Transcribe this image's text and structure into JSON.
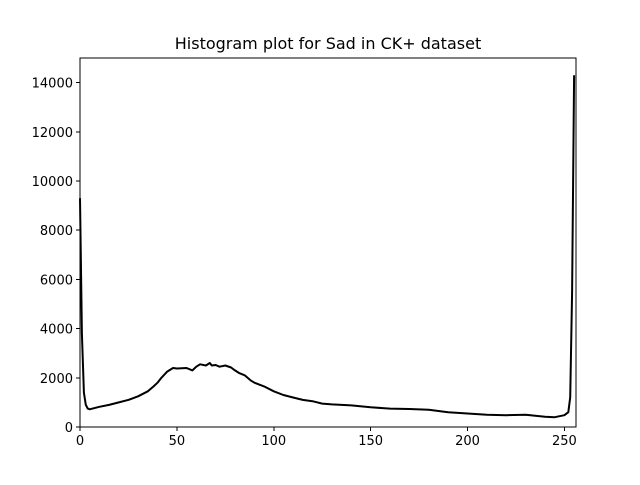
{
  "chart_data": {
    "type": "line",
    "title": "Histogram plot for Sad in CK+ dataset",
    "xlabel": "",
    "ylabel": "",
    "xlim": [
      0,
      256
    ],
    "ylim": [
      0,
      15000
    ],
    "xticks": [
      0,
      50,
      100,
      150,
      200,
      250
    ],
    "yticks": [
      0,
      2000,
      4000,
      6000,
      8000,
      10000,
      12000,
      14000
    ],
    "grid": false,
    "line_color": "#000000",
    "series": [
      {
        "x": [
          0,
          1,
          2,
          3,
          4,
          5,
          6,
          8,
          10,
          15,
          20,
          25,
          30,
          35,
          38,
          40,
          42,
          45,
          48,
          50,
          55,
          58,
          60,
          62,
          65,
          67,
          68,
          70,
          72,
          75,
          78,
          80,
          82,
          85,
          88,
          90,
          95,
          100,
          105,
          110,
          115,
          120,
          125,
          130,
          140,
          150,
          160,
          170,
          180,
          190,
          200,
          210,
          220,
          230,
          240,
          245,
          250,
          252,
          253,
          254,
          255
        ],
        "y": [
          9300,
          3800,
          1400,
          900,
          750,
          720,
          740,
          780,
          820,
          900,
          1000,
          1100,
          1250,
          1450,
          1650,
          1800,
          2000,
          2250,
          2400,
          2380,
          2400,
          2300,
          2450,
          2550,
          2500,
          2600,
          2500,
          2520,
          2450,
          2500,
          2420,
          2300,
          2200,
          2100,
          1900,
          1800,
          1650,
          1450,
          1300,
          1200,
          1100,
          1050,
          950,
          920,
          880,
          800,
          750,
          730,
          700,
          600,
          550,
          500,
          480,
          500,
          420,
          400,
          480,
          600,
          1200,
          5500,
          14300
        ]
      }
    ]
  }
}
